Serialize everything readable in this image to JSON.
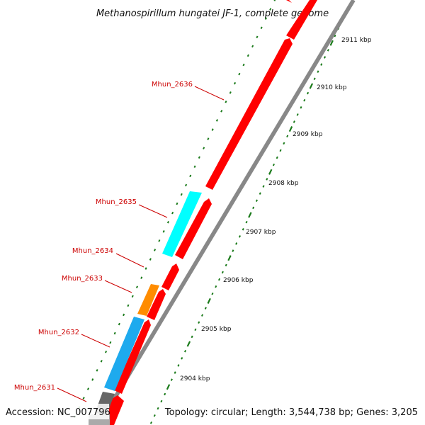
{
  "title": "Methanospirillum hungatei JF-1, complete genome",
  "accession": "Accession: NC_007796",
  "summary": "Topology: circular; Length: 3,544,738 bp; Genes: 3,205",
  "colors": {
    "forward_cds": "#ff0000",
    "backbone": "#888888",
    "tick_major": "#1a7a1a",
    "label_red": "#cc0000",
    "cyan_feature": "#00ffff",
    "blue_feature": "#1eaaee",
    "orange_feature": "#ff8c00",
    "gray_feature": "#666666"
  },
  "scale_ticks": [
    {
      "label": "2911 kbp"
    },
    {
      "label": "2910 kbp"
    },
    {
      "label": "2909 kbp"
    },
    {
      "label": "2908 kbp"
    },
    {
      "label": "2907 kbp"
    },
    {
      "label": "2906 kbp"
    },
    {
      "label": "2905 kbp"
    },
    {
      "label": "2904 kbp"
    }
  ],
  "gene_labels": [
    {
      "label": "Mhun_2636"
    },
    {
      "label": "Mhun_2635"
    },
    {
      "label": "Mhun_2634"
    },
    {
      "label": "Mhun_2633"
    },
    {
      "label": "Mhun_2632"
    },
    {
      "label": "Mhun_2631"
    }
  ]
}
